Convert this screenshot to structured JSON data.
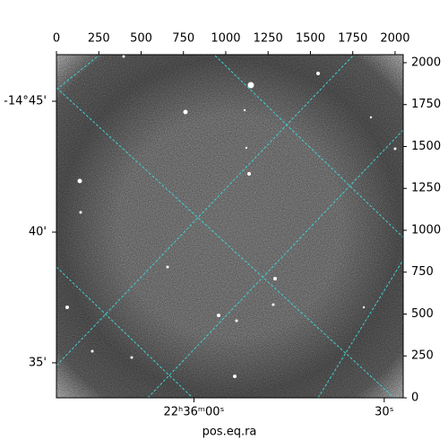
{
  "chart_data": {
    "type": "image",
    "x_label": "pos.eq.ra",
    "xlim": [
      0,
      2048
    ],
    "ylim": [
      0,
      2048
    ],
    "xticks": [
      0,
      250,
      500,
      750,
      1000,
      1250,
      1500,
      1750,
      2000
    ],
    "yticks": [
      0,
      250,
      500,
      750,
      1000,
      1250,
      1500,
      1750,
      2000
    ],
    "ra_ticks": [
      {
        "value": 812,
        "label": "22ʰ36ᵐ00ˢ"
      },
      {
        "value": 1936,
        "label": "30ˢ"
      }
    ],
    "dec_ticks": [
      {
        "value": 1770,
        "label": "-14°45'"
      },
      {
        "value": 989,
        "label": "40'"
      },
      {
        "value": 209,
        "label": "35'"
      }
    ]
  }
}
